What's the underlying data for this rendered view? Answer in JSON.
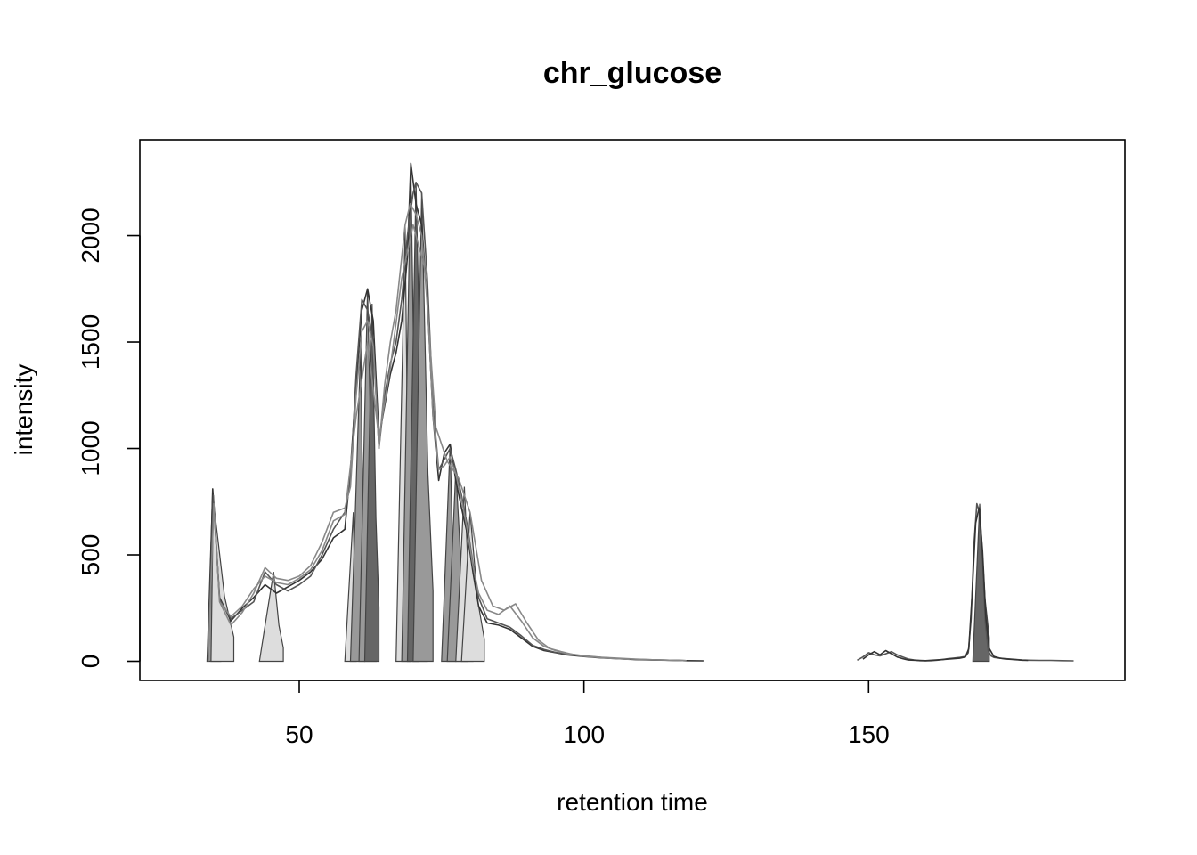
{
  "chart_data": {
    "type": "line",
    "title": "chr_glucose",
    "xlabel": "retention time",
    "ylabel": "intensity",
    "xlim": [
      22,
      195
    ],
    "ylim": [
      -90,
      2450
    ],
    "x_ticks": [
      50,
      100,
      150
    ],
    "y_ticks": [
      0,
      500,
      1000,
      1500,
      2000
    ],
    "grid": false,
    "legend": "none",
    "colors": {
      "trace_dark": "#333333",
      "trace_mid": "#555555",
      "trace_light": "#888888",
      "peak_dark": "#666666",
      "peak_mid": "#999999",
      "peak_light": "#dddddd",
      "peak_outline": "#444444"
    },
    "peaks": [
      {
        "rt_min": 33.8,
        "rt_max": 36.2,
        "apex_rt": 34.8,
        "apex_int": 810,
        "shade": "peak_mid"
      },
      {
        "rt_min": 34.5,
        "rt_max": 38.5,
        "apex_rt": 34.9,
        "apex_int": 760,
        "shade": "peak_light"
      },
      {
        "rt_min": 43.0,
        "rt_max": 47.2,
        "apex_rt": 45.5,
        "apex_int": 420,
        "shade": "peak_light"
      },
      {
        "rt_min": 58.0,
        "rt_max": 60.0,
        "apex_rt": 59.5,
        "apex_int": 700,
        "shade": "peak_light"
      },
      {
        "rt_min": 59.0,
        "rt_max": 61.5,
        "apex_rt": 60.8,
        "apex_int": 1500,
        "shade": "peak_mid"
      },
      {
        "rt_min": 60.5,
        "rt_max": 63.5,
        "apex_rt": 62.0,
        "apex_int": 1750,
        "shade": "peak_mid"
      },
      {
        "rt_min": 61.5,
        "rt_max": 64.0,
        "apex_rt": 62.8,
        "apex_int": 1680,
        "shade": "peak_dark"
      },
      {
        "rt_min": 67.0,
        "rt_max": 69.5,
        "apex_rt": 68.6,
        "apex_int": 2050,
        "shade": "peak_light"
      },
      {
        "rt_min": 68.0,
        "rt_max": 71.0,
        "apex_rt": 69.6,
        "apex_int": 2340,
        "shade": "peak_mid"
      },
      {
        "rt_min": 69.0,
        "rt_max": 72.5,
        "apex_rt": 70.5,
        "apex_int": 2250,
        "shade": "peak_dark"
      },
      {
        "rt_min": 70.0,
        "rt_max": 73.5,
        "apex_rt": 71.5,
        "apex_int": 2200,
        "shade": "peak_mid"
      },
      {
        "rt_min": 75.0,
        "rt_max": 77.5,
        "apex_rt": 76.5,
        "apex_int": 1020,
        "shade": "peak_mid"
      },
      {
        "rt_min": 76.0,
        "rt_max": 79.5,
        "apex_rt": 77.5,
        "apex_int": 900,
        "shade": "peak_mid"
      },
      {
        "rt_min": 77.5,
        "rt_max": 80.5,
        "apex_rt": 79.0,
        "apex_int": 820,
        "shade": "peak_light"
      },
      {
        "rt_min": 78.5,
        "rt_max": 82.5,
        "apex_rt": 80.0,
        "apex_int": 700,
        "shade": "peak_light"
      },
      {
        "rt_min": 168.3,
        "rt_max": 171.2,
        "apex_rt": 169.5,
        "apex_int": 740,
        "shade": "peak_dark"
      }
    ],
    "series": [
      {
        "color": "trace_dark",
        "x": [
          34,
          34.8,
          36,
          38,
          40,
          42,
          44,
          46,
          48,
          50,
          52,
          54,
          56,
          58,
          59,
          60,
          61,
          62,
          63,
          64,
          65,
          66,
          67,
          68,
          69,
          69.6,
          70.5,
          71.5,
          72.5,
          73.5,
          74.5,
          75.5,
          76.5,
          77.5,
          78.5,
          79.5,
          80.5,
          81.5,
          83,
          85,
          87,
          89,
          91,
          93,
          95,
          97,
          100,
          103,
          106,
          109,
          112,
          115,
          118,
          121
        ],
        "y": [
          0,
          810,
          300,
          190,
          250,
          300,
          360,
          320,
          350,
          380,
          420,
          480,
          580,
          620,
          900,
          1300,
          1650,
          1750,
          1600,
          1050,
          1200,
          1350,
          1450,
          1600,
          1900,
          2340,
          2150,
          2050,
          1700,
          1150,
          850,
          980,
          1020,
          850,
          720,
          600,
          420,
          260,
          180,
          170,
          150,
          110,
          70,
          50,
          40,
          30,
          22,
          16,
          12,
          8,
          6,
          5,
          3,
          2
        ]
      },
      {
        "color": "trace_mid",
        "x": [
          34,
          34.9,
          36,
          38,
          40,
          42,
          44,
          46,
          48,
          50,
          52,
          54,
          56,
          58,
          59,
          60,
          61,
          62,
          63,
          64,
          65,
          66,
          67,
          68,
          69,
          70,
          70.5,
          71.5,
          72.5,
          73.5,
          74.5,
          75.5,
          76.5,
          77.5,
          78.5,
          79.5,
          80.5,
          81.5,
          83,
          85,
          87,
          89,
          91,
          93,
          95,
          97,
          100,
          103,
          106,
          109,
          112,
          115,
          118
        ],
        "y": [
          0,
          780,
          290,
          200,
          240,
          280,
          420,
          360,
          330,
          360,
          400,
          500,
          620,
          700,
          850,
          1350,
          1700,
          1650,
          1500,
          1000,
          1250,
          1400,
          1500,
          1700,
          2000,
          2200,
          2250,
          2200,
          1800,
          1200,
          900,
          950,
          1000,
          900,
          780,
          640,
          460,
          300,
          200,
          180,
          160,
          120,
          75,
          55,
          42,
          32,
          24,
          18,
          13,
          9,
          7,
          5,
          3
        ]
      },
      {
        "color": "trace_light",
        "x": [
          34,
          35,
          36,
          38,
          40,
          42,
          44,
          46,
          48,
          50,
          52,
          54,
          56,
          58,
          59,
          60,
          61,
          62,
          63,
          64,
          65,
          66,
          67,
          68,
          68.6,
          69.5,
          70.5,
          71.5,
          72.5,
          73.5,
          74.5,
          75.5,
          76.5,
          77.5,
          78.5,
          79.5,
          80.5,
          81.5,
          83,
          85,
          87,
          89,
          91,
          93,
          95,
          97,
          100,
          103,
          106,
          109,
          112,
          115,
          118
        ],
        "y": [
          0,
          740,
          280,
          170,
          230,
          320,
          440,
          390,
          380,
          400,
          450,
          560,
          700,
          720,
          820,
          1250,
          1550,
          1600,
          1480,
          1000,
          1300,
          1500,
          1650,
          1900,
          2050,
          2150,
          2100,
          2000,
          1700,
          1150,
          900,
          920,
          960,
          880,
          760,
          620,
          450,
          320,
          240,
          220,
          260,
          190,
          110,
          70,
          50,
          36,
          26,
          19,
          14,
          10,
          7,
          5,
          3
        ]
      },
      {
        "color": "trace_light",
        "x": [
          36,
          38,
          40,
          42,
          44,
          46,
          48,
          50,
          52,
          54,
          56,
          58,
          60,
          62,
          64,
          66,
          68,
          70,
          72,
          74,
          76,
          78,
          80,
          82,
          84,
          86,
          88,
          90,
          92,
          94,
          96,
          98,
          100,
          104,
          108
        ],
        "y": [
          280,
          210,
          260,
          340,
          400,
          370,
          360,
          390,
          430,
          520,
          660,
          690,
          1150,
          1500,
          1050,
          1380,
          1800,
          2050,
          1850,
          1100,
          940,
          860,
          700,
          380,
          260,
          240,
          270,
          180,
          100,
          60,
          45,
          32,
          24,
          15,
          9
        ]
      },
      {
        "color": "trace_mid",
        "x": [
          148,
          149,
          150,
          151,
          152,
          153,
          154,
          155,
          156,
          157,
          158,
          159,
          160,
          161,
          162,
          163,
          164,
          165,
          166,
          167,
          167.5,
          168,
          168.5,
          169,
          169.5,
          170,
          170.5,
          171,
          171.5,
          172,
          173,
          174,
          175,
          176,
          177,
          178,
          180,
          182,
          184,
          186
        ],
        "y": [
          5,
          20,
          40,
          30,
          25,
          35,
          45,
          30,
          20,
          10,
          6,
          3,
          2,
          3,
          5,
          8,
          12,
          15,
          18,
          22,
          40,
          200,
          550,
          740,
          700,
          480,
          180,
          50,
          25,
          18,
          14,
          12,
          10,
          8,
          6,
          5,
          4,
          4,
          3,
          2
        ]
      },
      {
        "color": "trace_dark",
        "x": [
          149,
          150,
          151,
          152,
          153,
          154,
          155,
          156,
          157,
          160,
          163,
          166,
          167,
          167.6,
          168.2,
          168.8,
          169.4,
          170,
          170.6,
          171.2,
          172,
          173,
          174,
          175,
          176,
          177,
          178
        ],
        "y": [
          10,
          30,
          45,
          30,
          50,
          35,
          20,
          12,
          6,
          3,
          8,
          14,
          20,
          60,
          330,
          650,
          720,
          520,
          200,
          60,
          22,
          15,
          11,
          9,
          7,
          5,
          4
        ]
      }
    ]
  }
}
